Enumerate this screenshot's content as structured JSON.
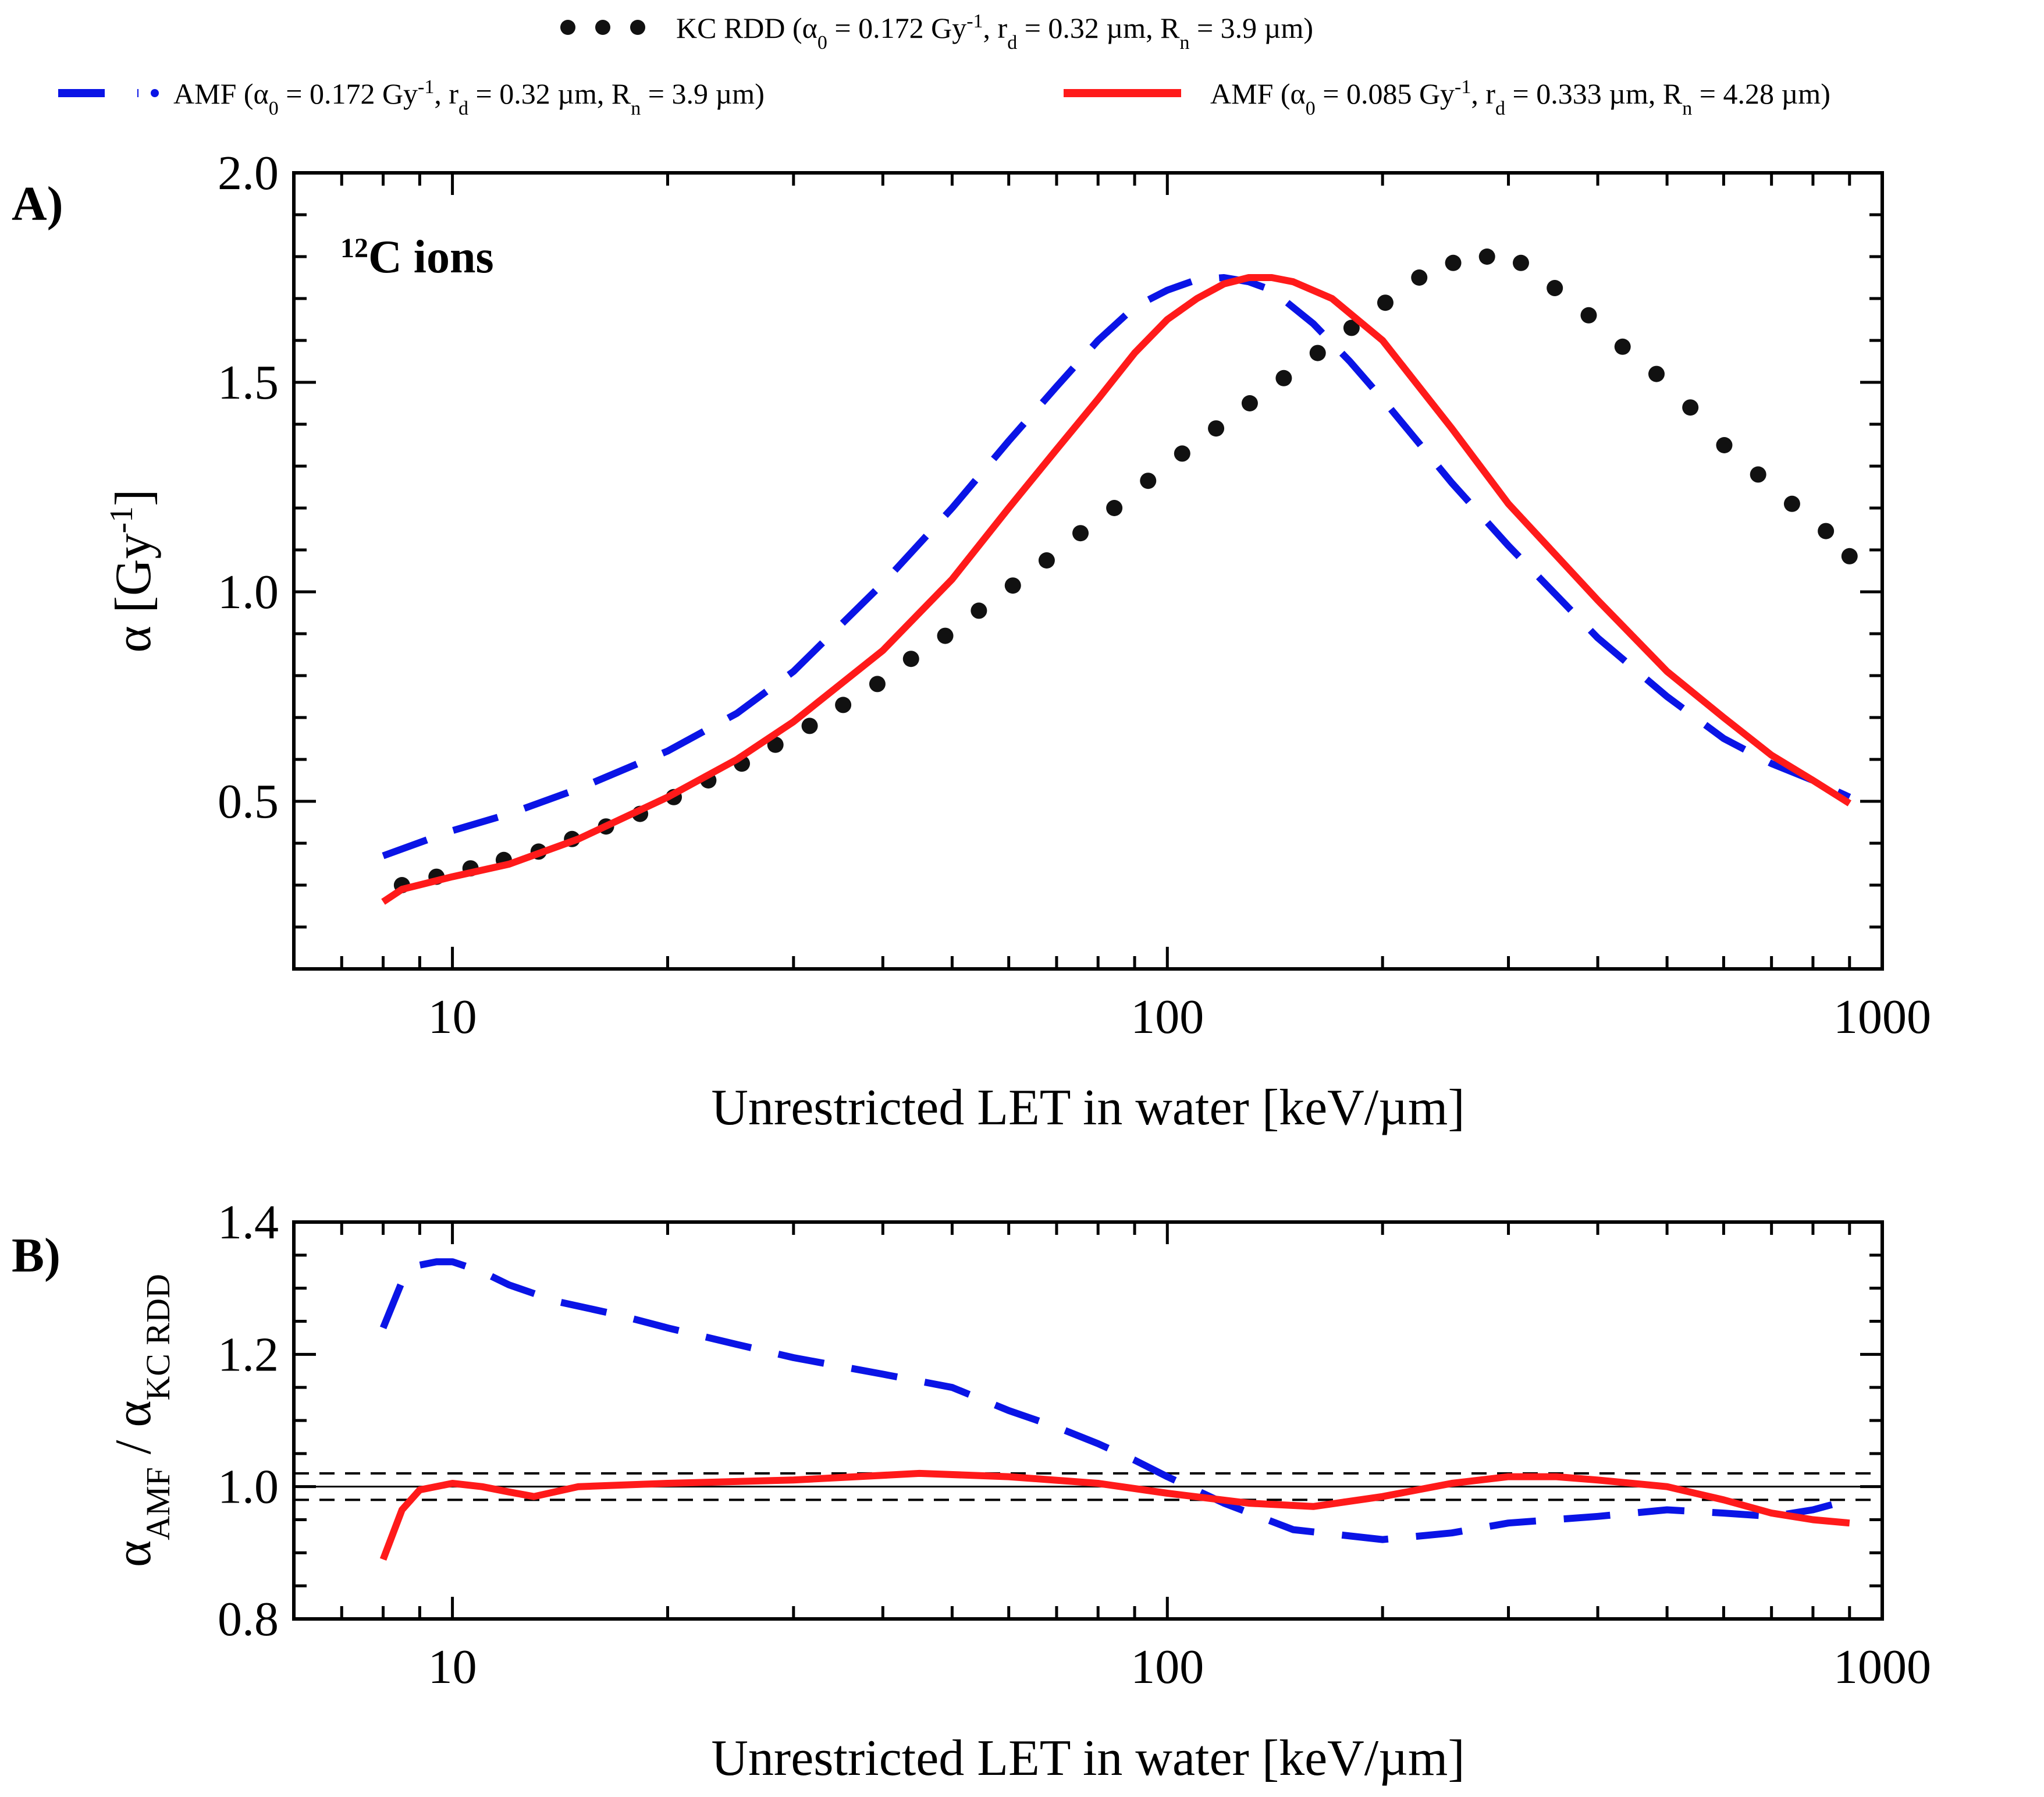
{
  "colors": {
    "kc": "#111111",
    "amf1": "#0a14e6",
    "amf2": "#ff1a1a",
    "ref": "#000000"
  },
  "legend": {
    "kc": {
      "method": "KC RDD",
      "alpha_value": "0.172",
      "rd": "0.32",
      "rn": "3.9"
    },
    "amf1": {
      "method": "AMF",
      "alpha_value": "0.172",
      "rd": "0.32",
      "rn": "3.9"
    },
    "amf2": {
      "method": "AMF",
      "alpha_value": "0.085",
      "rd": "0.333",
      "rn": "4.28"
    }
  },
  "chart_data": [
    {
      "id": "A",
      "panel_label": "A)",
      "type": "line",
      "annotation": {
        "mass": "12",
        "text": "C ions"
      },
      "xscale": "log",
      "xlim": [
        6,
        1000
      ],
      "ylim": [
        0.1,
        2.0
      ],
      "xticks": [
        10,
        100,
        1000
      ],
      "yticks": [
        0.5,
        1.0,
        1.5,
        2.0
      ],
      "xticklabels": [
        "10",
        "100",
        "1000"
      ],
      "yticklabels": [
        "0.5",
        "1.0",
        "1.5",
        "2.0"
      ],
      "xlabel": "Unrestricted LET in water [keV/µm]",
      "ylabel": {
        "prefix": "α [Gy",
        "sup": "-1",
        "suffix": "]"
      },
      "series": [
        {
          "key": "kc",
          "name": "KC RDD",
          "style": "dots",
          "x": [
            8.5,
            9.5,
            10.6,
            11.8,
            13.2,
            14.7,
            16.4,
            18.3,
            20.4,
            22.8,
            25.4,
            28.3,
            31.6,
            35.2,
            39.3,
            43.8,
            48.9,
            54.5,
            60.8,
            67.8,
            75.6,
            84.3,
            94.0,
            104.9,
            117.0,
            130.4,
            145.5,
            162.3,
            181.0,
            201.8,
            225.1,
            251.1,
            280.0,
            312.3,
            348.3,
            388.5,
            433.3,
            483.3,
            539.0,
            601.2,
            670.5,
            747.8,
            834.0,
            900.0
          ],
          "y": [
            0.3,
            0.32,
            0.34,
            0.36,
            0.38,
            0.41,
            0.44,
            0.47,
            0.51,
            0.55,
            0.59,
            0.635,
            0.68,
            0.73,
            0.78,
            0.84,
            0.895,
            0.955,
            1.015,
            1.075,
            1.14,
            1.2,
            1.265,
            1.33,
            1.39,
            1.45,
            1.51,
            1.57,
            1.63,
            1.69,
            1.75,
            1.785,
            1.8,
            1.785,
            1.725,
            1.66,
            1.585,
            1.52,
            1.44,
            1.35,
            1.28,
            1.21,
            1.145,
            1.085
          ]
        },
        {
          "key": "amf1",
          "name": "AMF",
          "style": "dashed",
          "x": [
            8.0,
            10.0,
            12.0,
            15.0,
            20.0,
            25.0,
            30.0,
            40.0,
            50.0,
            60.0,
            70.0,
            80.0,
            90.0,
            100.0,
            110.0,
            120.0,
            130.0,
            140.0,
            160.0,
            180.0,
            200.0,
            250.0,
            300.0,
            400.0,
            500.0,
            600.0,
            700.0,
            800.0,
            900.0
          ],
          "y": [
            0.37,
            0.43,
            0.47,
            0.53,
            0.62,
            0.71,
            0.81,
            1.02,
            1.2,
            1.36,
            1.49,
            1.6,
            1.68,
            1.72,
            1.745,
            1.75,
            1.74,
            1.72,
            1.64,
            1.55,
            1.46,
            1.26,
            1.11,
            0.89,
            0.75,
            0.65,
            0.59,
            0.55,
            0.51
          ]
        },
        {
          "key": "amf2",
          "name": "AMF",
          "style": "solid",
          "x": [
            8.0,
            8.5,
            10.0,
            12.0,
            15.0,
            20.0,
            25.0,
            30.0,
            40.0,
            50.0,
            60.0,
            70.0,
            80.0,
            90.0,
            100.0,
            110.0,
            120.0,
            130.0,
            140.0,
            150.0,
            170.0,
            200.0,
            250.0,
            300.0,
            400.0,
            500.0,
            600.0,
            700.0,
            800.0,
            900.0
          ],
          "y": [
            0.26,
            0.29,
            0.32,
            0.35,
            0.41,
            0.51,
            0.6,
            0.69,
            0.86,
            1.03,
            1.2,
            1.34,
            1.46,
            1.57,
            1.65,
            1.7,
            1.735,
            1.75,
            1.75,
            1.74,
            1.7,
            1.6,
            1.39,
            1.21,
            0.98,
            0.81,
            0.7,
            0.61,
            0.55,
            0.495
          ]
        }
      ]
    },
    {
      "id": "B",
      "panel_label": "B)",
      "type": "line",
      "xscale": "log",
      "xlim": [
        6,
        1000
      ],
      "ylim": [
        0.8,
        1.4
      ],
      "xticks": [
        10,
        100,
        1000
      ],
      "yticks": [
        0.8,
        1.0,
        1.2,
        1.4
      ],
      "xticklabels": [
        "10",
        "100",
        "1000"
      ],
      "yticklabels": [
        "0.8",
        "1.0",
        "1.2",
        "1.4"
      ],
      "xlabel": "Unrestricted LET in water [keV/µm]",
      "ylabel": {
        "base1": "α",
        "sub1": "AMF",
        "sep": " / ",
        "base2": "α",
        "sub2": "KC RDD"
      },
      "reference_lines": [
        1.0
      ],
      "dashed_reference_lines": [
        0.98,
        1.02
      ],
      "series": [
        {
          "key": "amf1",
          "name": "AMF",
          "style": "dashed",
          "x": [
            8.0,
            8.5,
            9.0,
            9.5,
            10.0,
            11.0,
            12.0,
            14.0,
            17.0,
            20.0,
            25.0,
            30.0,
            40.0,
            50.0,
            60.0,
            70.0,
            80.0,
            90.0,
            100.0,
            120.0,
            150.0,
            200.0,
            250.0,
            300.0,
            400.0,
            500.0,
            600.0,
            700.0,
            800.0,
            900.0
          ],
          "y": [
            1.24,
            1.31,
            1.335,
            1.34,
            1.34,
            1.325,
            1.305,
            1.28,
            1.26,
            1.24,
            1.215,
            1.195,
            1.17,
            1.15,
            1.115,
            1.09,
            1.065,
            1.04,
            1.015,
            0.975,
            0.935,
            0.92,
            0.93,
            0.945,
            0.955,
            0.965,
            0.96,
            0.955,
            0.965,
            0.98
          ]
        },
        {
          "key": "amf2",
          "name": "AMF",
          "style": "solid",
          "x": [
            8.0,
            8.5,
            9.0,
            10.0,
            11.0,
            12.0,
            13.0,
            15.0,
            20.0,
            30.0,
            45.0,
            60.0,
            80.0,
            100.0,
            130.0,
            160.0,
            200.0,
            250.0,
            300.0,
            350.0,
            400.0,
            500.0,
            600.0,
            700.0,
            800.0,
            900.0
          ],
          "y": [
            0.89,
            0.965,
            0.995,
            1.005,
            1.0,
            0.992,
            0.985,
            1.0,
            1.005,
            1.01,
            1.02,
            1.015,
            1.005,
            0.99,
            0.975,
            0.97,
            0.985,
            1.005,
            1.015,
            1.015,
            1.01,
            1.0,
            0.98,
            0.96,
            0.95,
            0.945
          ]
        }
      ]
    }
  ]
}
